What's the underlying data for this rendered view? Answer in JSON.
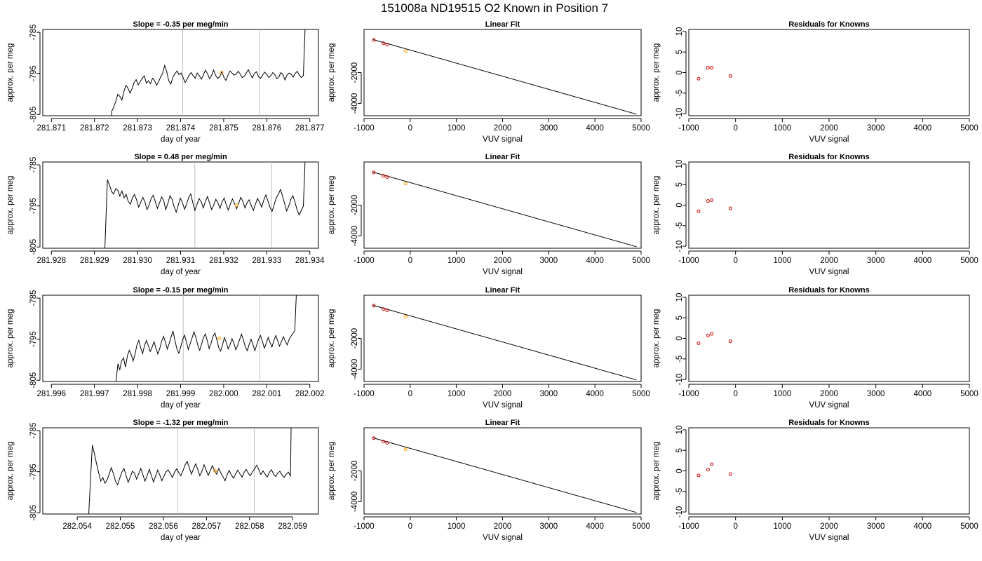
{
  "figure": {
    "title": "151008a     ND19515   O2 Known in Position  7"
  },
  "chart_data": [
    {
      "type": "line",
      "panel": "time-series",
      "row": 1,
      "title": "Slope =  -0.35  per meg/min",
      "xlabel": "day of year",
      "ylabel": "approx. per meg",
      "xlim": [
        281.8708,
        281.8772
      ],
      "ylim": [
        -805.3,
        -784.3
      ],
      "xticks": [
        "281.871",
        "281.872",
        "281.873",
        "281.874",
        "281.875",
        "281.876",
        "281.877"
      ],
      "yticks": [
        "-785",
        "-795",
        "-805"
      ],
      "vlines": [
        281.87405,
        281.87583
      ],
      "marker": {
        "x": 281.87495,
        "y": -794.8,
        "color": "#ffa500"
      },
      "signal": {
        "start": 281.8724,
        "end": 281.87685,
        "x_enter": 281.87238,
        "x_exit": 281.8769,
        "values": [
          -804.2,
          -803.2,
          -801.8,
          -800.1,
          -800.6,
          -801.5,
          -799.4,
          -797.9,
          -798.6,
          -799.8,
          -798.7,
          -797.2,
          -796.5,
          -797.8,
          -797.0,
          -796.2,
          -795.6,
          -797.4,
          -796.8,
          -797.5,
          -796.2,
          -796.7,
          -797.9,
          -797.0,
          -795.9,
          -794.9,
          -793.1,
          -794.6,
          -796.8,
          -797.6,
          -795.9,
          -795.1,
          -794.4,
          -795.3,
          -794.9,
          -796.0,
          -797.2,
          -796.4,
          -795.4,
          -794.8,
          -795.6,
          -796.2,
          -794.9,
          -795.6,
          -796.4,
          -795.3,
          -794.2,
          -795.1,
          -796.3,
          -795.5,
          -794.2,
          -795.5,
          -796.2,
          -795.8,
          -794.6,
          -795.9,
          -796.7,
          -795.5,
          -794.4,
          -794.9,
          -795.4,
          -795.2,
          -794.5,
          -795.1,
          -796.0,
          -795.7,
          -794.9,
          -794.1,
          -795.2,
          -796.1,
          -795.0,
          -794.6,
          -795.8,
          -796.2,
          -795.4,
          -794.7,
          -795.2,
          -796.0,
          -795.6,
          -794.8,
          -795.3,
          -796.3,
          -795.8,
          -794.8,
          -795.3,
          -796.6,
          -795.4,
          -794.9,
          -795.2,
          -795.9,
          -795.0,
          -794.5,
          -795.4,
          -796.0,
          -795.5
        ]
      }
    },
    {
      "type": "scatter",
      "panel": "linear-fit",
      "row": 1,
      "title": "Linear Fit",
      "xlabel": "VUV signal",
      "ylabel": "approx. per meg",
      "xlim": [
        -1000,
        5000
      ],
      "ylim": [
        -4800,
        800
      ],
      "xticks": [
        "-1000",
        "0",
        "1000",
        "2000",
        "3000",
        "4000",
        "5000"
      ],
      "yticks": [
        "-2000",
        "-4000"
      ],
      "points": [
        {
          "x": -790,
          "y": 120
        },
        {
          "x": -580,
          "y": -100
        },
        {
          "x": -500,
          "y": -180
        }
      ],
      "current": {
        "x": -100,
        "y": -600,
        "color": "#ffa500"
      },
      "fit_line": {
        "x": [
          -800,
          4900
        ],
        "y": [
          140,
          -4700
        ]
      }
    },
    {
      "type": "scatter",
      "panel": "residuals",
      "row": 1,
      "title": "Residuals for Knowns",
      "xlabel": "VUV signal",
      "ylabel": "approx. per meg",
      "xlim": [
        -1000,
        5000
      ],
      "ylim": [
        -10.5,
        10.5
      ],
      "xticks": [
        "-1000",
        "0",
        "1000",
        "2000",
        "3000",
        "4000",
        "5000"
      ],
      "yticks": [
        "10",
        "5",
        "0",
        "-5",
        "-10"
      ],
      "points": [
        {
          "x": -790,
          "y": -1.5
        },
        {
          "x": -590,
          "y": 1.2
        },
        {
          "x": -510,
          "y": 1.2
        },
        {
          "x": -110,
          "y": -0.8
        }
      ]
    },
    {
      "type": "line",
      "panel": "time-series",
      "row": 2,
      "title": "Slope =  0.48  per meg/min",
      "xlabel": "day of year",
      "ylabel": "approx. per meg",
      "xlim": [
        281.9278,
        281.9342
      ],
      "ylim": [
        -805.3,
        -784.3
      ],
      "xticks": [
        "281.928",
        "281.929",
        "281.930",
        "281.931",
        "281.932",
        "281.933",
        "281.934"
      ],
      "yticks": [
        "-785",
        "-795",
        "-805"
      ],
      "vlines": [
        281.93133,
        281.93311
      ],
      "marker": {
        "x": 281.9323,
        "y": -794.8,
        "color": "#ffa500"
      },
      "signal": {
        "start": 281.9293,
        "end": 281.93385,
        "x_enter": 281.92923,
        "x_exit": 281.9339,
        "values": [
          -788.6,
          -789.9,
          -791.5,
          -792.1,
          -790.8,
          -791.2,
          -792.6,
          -791.4,
          -793.0,
          -792.2,
          -793.9,
          -794.6,
          -793.1,
          -792.2,
          -793.5,
          -795.3,
          -794.1,
          -792.9,
          -794.0,
          -795.9,
          -794.7,
          -793.2,
          -792.4,
          -794.0,
          -795.6,
          -794.3,
          -792.8,
          -793.7,
          -795.9,
          -794.4,
          -792.5,
          -793.4,
          -795.2,
          -796.5,
          -794.8,
          -793.1,
          -794.2,
          -795.8,
          -794.5,
          -793.0,
          -792.1,
          -794.3,
          -796.1,
          -794.6,
          -793.2,
          -794.0,
          -795.5,
          -793.9,
          -792.7,
          -794.3,
          -795.9,
          -794.8,
          -793.4,
          -794.2,
          -795.6,
          -794.0,
          -793.1,
          -794.7,
          -796.0,
          -794.5,
          -793.3,
          -794.4,
          -795.7,
          -794.3,
          -792.9,
          -793.9,
          -795.5,
          -794.2,
          -793.5,
          -794.9,
          -796.1,
          -794.6,
          -793.2,
          -794.1,
          -795.3,
          -793.6,
          -792.3,
          -793.8,
          -795.4,
          -796.3,
          -794.7,
          -793.0,
          -792.2,
          -791.0,
          -792.6,
          -794.4,
          -796.2,
          -795.0,
          -793.4,
          -792.5,
          -794.1,
          -796.0,
          -797.2,
          -796.1,
          -795.0
        ]
      }
    },
    {
      "type": "scatter",
      "panel": "linear-fit",
      "row": 2,
      "title": "Linear Fit",
      "xlabel": "VUV signal",
      "ylabel": "approx. per meg",
      "xlim": [
        -1000,
        5000
      ],
      "ylim": [
        -4800,
        800
      ],
      "xticks": [
        "-1000",
        "0",
        "1000",
        "2000",
        "3000",
        "4000",
        "5000"
      ],
      "yticks": [
        "-2000",
        "-4000"
      ],
      "points": [
        {
          "x": -790,
          "y": 120
        },
        {
          "x": -580,
          "y": -100
        },
        {
          "x": -500,
          "y": -180
        }
      ],
      "current": {
        "x": -100,
        "y": -600,
        "color": "#ffa500"
      },
      "fit_line": {
        "x": [
          -800,
          4900
        ],
        "y": [
          140,
          -4700
        ]
      }
    },
    {
      "type": "scatter",
      "panel": "residuals",
      "row": 2,
      "title": "Residuals for Knowns",
      "xlabel": "VUV signal",
      "ylabel": "approx. per meg",
      "xlim": [
        -1000,
        5000
      ],
      "ylim": [
        -10.5,
        10.5
      ],
      "xticks": [
        "-1000",
        "0",
        "1000",
        "2000",
        "3000",
        "4000",
        "5000"
      ],
      "yticks": [
        "10",
        "5",
        "0",
        "-5",
        "-10"
      ],
      "points": [
        {
          "x": -790,
          "y": -1.5
        },
        {
          "x": -590,
          "y": 1.0
        },
        {
          "x": -510,
          "y": 1.2
        },
        {
          "x": -110,
          "y": -0.8
        }
      ]
    },
    {
      "type": "line",
      "panel": "time-series",
      "row": 3,
      "title": "Slope =  -0.15  per meg/min",
      "xlabel": "day of year",
      "ylabel": "approx. per meg",
      "xlim": [
        281.9958,
        282.0022
      ],
      "ylim": [
        -805.3,
        -784.3
      ],
      "xticks": [
        "281.996",
        "281.997",
        "281.998",
        "281.999",
        "282.000",
        "282.001",
        "282.002"
      ],
      "yticks": [
        "-785",
        "-795",
        "-805"
      ],
      "vlines": [
        281.99906,
        282.00084
      ],
      "marker": {
        "x": 281.9999,
        "y": -794.8,
        "color": "#ffa500"
      },
      "signal": {
        "start": 281.9975,
        "end": 282.00165,
        "x_enter": 281.99748,
        "x_exit": 282.0017,
        "values": [
          -805.3,
          -801.0,
          -802.4,
          -800.2,
          -799.6,
          -801.8,
          -799.0,
          -797.7,
          -798.8,
          -800.3,
          -798.7,
          -796.4,
          -795.3,
          -797.1,
          -798.5,
          -796.5,
          -795.3,
          -796.6,
          -798.0,
          -796.9,
          -795.6,
          -797.2,
          -798.6,
          -797.3,
          -795.5,
          -794.3,
          -795.8,
          -797.4,
          -796.0,
          -794.4,
          -793.1,
          -795.3,
          -797.3,
          -798.4,
          -796.9,
          -795.2,
          -794.0,
          -795.6,
          -797.5,
          -796.1,
          -794.7,
          -793.2,
          -794.6,
          -796.5,
          -797.7,
          -796.2,
          -794.6,
          -793.7,
          -795.4,
          -797.3,
          -796.0,
          -794.3,
          -793.5,
          -795.1,
          -797.0,
          -797.9,
          -796.4,
          -794.6,
          -795.8,
          -797.4,
          -796.3,
          -794.9,
          -796.0,
          -797.6,
          -796.5,
          -795.1,
          -793.8,
          -795.2,
          -796.9,
          -797.8,
          -796.3,
          -795.0,
          -796.3,
          -797.8,
          -796.4,
          -795.0,
          -794.1,
          -795.5,
          -797.2,
          -796.0,
          -794.6,
          -795.8,
          -796.9,
          -795.4,
          -794.1,
          -795.3,
          -796.7,
          -795.6,
          -794.4,
          -795.5,
          -796.4,
          -795.1,
          -794.3,
          -793.6,
          -793.0
        ]
      }
    },
    {
      "type": "scatter",
      "panel": "linear-fit",
      "row": 3,
      "title": "Linear Fit",
      "xlabel": "VUV signal",
      "ylabel": "approx. per meg",
      "xlim": [
        -1000,
        5000
      ],
      "ylim": [
        -4800,
        800
      ],
      "xticks": [
        "-1000",
        "0",
        "1000",
        "2000",
        "3000",
        "4000",
        "5000"
      ],
      "yticks": [
        "-2000",
        "-4000"
      ],
      "points": [
        {
          "x": -790,
          "y": 120
        },
        {
          "x": -580,
          "y": -100
        },
        {
          "x": -500,
          "y": -180
        }
      ],
      "current": {
        "x": -100,
        "y": -600,
        "color": "#ffa500"
      },
      "fit_line": {
        "x": [
          -800,
          4900
        ],
        "y": [
          140,
          -4700
        ]
      }
    },
    {
      "type": "scatter",
      "panel": "residuals",
      "row": 3,
      "title": "Residuals for Knowns",
      "xlabel": "VUV signal",
      "ylabel": "approx. per meg",
      "xlim": [
        -1000,
        5000
      ],
      "ylim": [
        -10.5,
        10.5
      ],
      "xticks": [
        "-1000",
        "0",
        "1000",
        "2000",
        "3000",
        "4000",
        "5000"
      ],
      "yticks": [
        "10",
        "5",
        "0",
        "-5",
        "-10"
      ],
      "points": [
        {
          "x": -790,
          "y": -1.2
        },
        {
          "x": -590,
          "y": 0.7
        },
        {
          "x": -510,
          "y": 1.1
        },
        {
          "x": -110,
          "y": -0.7
        }
      ]
    },
    {
      "type": "line",
      "panel": "time-series",
      "row": 4,
      "title": "Slope =  -1.32  per meg/min",
      "xlabel": "day of year",
      "ylabel": "approx. per meg",
      "xlim": [
        282.0532,
        282.0596
      ],
      "ylim": [
        -805.3,
        -784.3
      ],
      "xticks": [
        "282.054",
        "282.055",
        "282.056",
        "282.057",
        "282.058",
        "282.059"
      ],
      "yticks": [
        "-785",
        "-795",
        "-805"
      ],
      "vlines": [
        282.05633,
        282.05811
      ],
      "marker": {
        "x": 282.0572,
        "y": -794.8,
        "color": "#ffa500"
      },
      "signal": {
        "start": 282.05435,
        "end": 282.05895,
        "x_enter": 282.05425,
        "x_exit": 282.05897,
        "values": [
          -788.5,
          -790.6,
          -793.0,
          -795.2,
          -797.3,
          -796.4,
          -797.8,
          -797.0,
          -795.6,
          -794.0,
          -795.5,
          -797.3,
          -798.2,
          -796.6,
          -795.1,
          -794.2,
          -795.9,
          -797.6,
          -796.3,
          -794.9,
          -795.3,
          -796.8,
          -795.5,
          -794.2,
          -795.7,
          -797.3,
          -796.0,
          -794.4,
          -795.9,
          -797.5,
          -796.1,
          -794.6,
          -795.8,
          -797.2,
          -796.1,
          -795.0,
          -794.6,
          -795.5,
          -796.4,
          -795.1,
          -794.3,
          -795.2,
          -796.0,
          -794.8,
          -793.4,
          -792.5,
          -794.0,
          -795.6,
          -794.3,
          -793.1,
          -794.4,
          -796.0,
          -794.9,
          -793.3,
          -794.6,
          -795.9,
          -794.7,
          -793.5,
          -794.8,
          -795.6,
          -794.2,
          -795.3,
          -796.2,
          -797.2,
          -795.7,
          -794.7,
          -795.8,
          -796.6,
          -795.5,
          -794.6,
          -795.5,
          -796.3,
          -795.2,
          -794.4,
          -795.4,
          -796.0,
          -795.0,
          -794.3,
          -793.4,
          -794.5,
          -795.7,
          -794.8,
          -795.6,
          -796.3,
          -795.2,
          -794.5,
          -795.6,
          -796.2,
          -795.3,
          -794.9,
          -795.8,
          -796.4,
          -795.6,
          -795.1,
          -796.0
        ]
      }
    },
    {
      "type": "scatter",
      "panel": "linear-fit",
      "row": 4,
      "title": "Linear Fit",
      "xlabel": "VUV signal",
      "ylabel": "approx. per meg",
      "xlim": [
        -1000,
        5000
      ],
      "ylim": [
        -4800,
        800
      ],
      "xticks": [
        "-1000",
        "0",
        "1000",
        "2000",
        "3000",
        "4000",
        "5000"
      ],
      "yticks": [
        "-2000",
        "-4000"
      ],
      "points": [
        {
          "x": -790,
          "y": 120
        },
        {
          "x": -580,
          "y": -100
        },
        {
          "x": -500,
          "y": -180
        }
      ],
      "current": {
        "x": -100,
        "y": -600,
        "color": "#ffa500"
      },
      "fit_line": {
        "x": [
          -800,
          4900
        ],
        "y": [
          140,
          -4700
        ]
      }
    },
    {
      "type": "scatter",
      "panel": "residuals",
      "row": 4,
      "title": "Residuals for Knowns",
      "xlabel": "VUV signal",
      "ylabel": "approx. per meg",
      "xlim": [
        -1000,
        5000
      ],
      "ylim": [
        -10.5,
        10.5
      ],
      "xticks": [
        "-1000",
        "0",
        "1000",
        "2000",
        "3000",
        "4000",
        "5000"
      ],
      "yticks": [
        "10",
        "5",
        "0",
        "-5",
        "-10"
      ],
      "points": [
        {
          "x": -790,
          "y": -1.1
        },
        {
          "x": -590,
          "y": 0.3
        },
        {
          "x": -510,
          "y": 1.6
        },
        {
          "x": -110,
          "y": -0.8
        }
      ]
    }
  ],
  "colors": {
    "line": "#000000",
    "known_point": "#cc0000",
    "current_point": "#ffa500",
    "vline": "#bebebe"
  }
}
